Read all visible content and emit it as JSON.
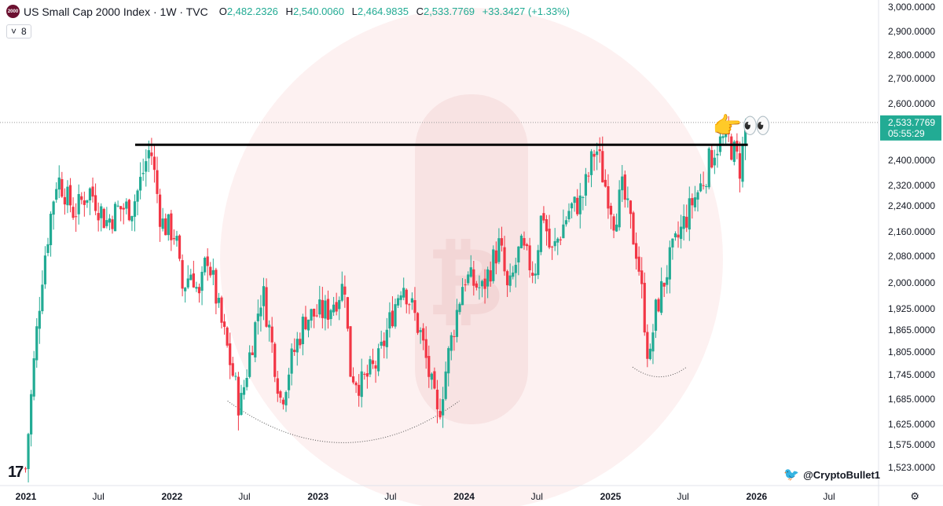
{
  "header": {
    "logo_text": "2000",
    "title": "US Small Cap 2000 Index · 1W · TVC",
    "open_label": "O",
    "open": "2,482.2326",
    "high_label": "H",
    "high": "2,540.0060",
    "low_label": "L",
    "low": "2,464.9835",
    "close_label": "C",
    "close": "2,533.7769",
    "change": "+33.3427 (+1.33%)"
  },
  "indicator_box": {
    "chevron": "˅",
    "count": "8"
  },
  "watermark": {
    "tv_logo": "17",
    "twitter_handle": "@CryptoBullet1"
  },
  "colors": {
    "up": "#22ab94",
    "down": "#f23645",
    "resistance": "#000000",
    "price_tag": "#22ab94"
  },
  "chart_data": {
    "type": "candlestick",
    "y_axis_ticks": [
      3000,
      2900,
      2800,
      2700,
      2600,
      2400,
      2320,
      2240,
      2160,
      2080,
      2000,
      1925,
      1865,
      1805,
      1745,
      1685,
      1625,
      1575,
      1523
    ],
    "y_axis_labels": [
      "3,000.0000",
      "2,900.0000",
      "2,800.0000",
      "2,700.0000",
      "2,600.0000",
      "2,400.0000",
      "2,320.0000",
      "2,240.0000",
      "2,160.0000",
      "2,080.0000",
      "2,000.0000",
      "1,925.0000",
      "1,865.0000",
      "1,805.0000",
      "1,745.0000",
      "1,685.0000",
      "1,625.0000",
      "1,575.0000",
      "1,523.0000"
    ],
    "x_axis_labels": [
      "2021",
      "Jul",
      "2022",
      "Jul",
      "2023",
      "Jul",
      "2024",
      "Jul",
      "2025",
      "Jul",
      "2026",
      "Jul"
    ],
    "x_axis_dates": [
      "2021-01-01",
      "2021-07-01",
      "2022-01-01",
      "2022-07-01",
      "2023-01-01",
      "2023-07-01",
      "2024-01-01",
      "2024-07-01",
      "2025-01-01",
      "2025-07-01",
      "2026-01-01",
      "2026-07-01"
    ],
    "last_price": 2533.7769,
    "last_price_label": "2,533.7769",
    "countdown": "05:55:29",
    "resistance_level": 2455,
    "resistance_start": "2021-10-01",
    "resistance_end": "2025-12-10",
    "anchors": [
      [
        "2020-12-31",
        1520
      ],
      [
        "2021-02-10",
        2020
      ],
      [
        "2021-03-20",
        2350
      ],
      [
        "2021-05-01",
        2220
      ],
      [
        "2021-06-10",
        2300
      ],
      [
        "2021-07-20",
        2190
      ],
      [
        "2021-08-20",
        2230
      ],
      [
        "2021-09-25",
        2240
      ],
      [
        "2021-11-08",
        2450
      ],
      [
        "2021-12-05",
        2190
      ],
      [
        "2022-01-10",
        2150
      ],
      [
        "2022-01-25",
        1980
      ],
      [
        "2022-02-20",
        2040
      ],
      [
        "2022-03-10",
        1950
      ],
      [
        "2022-03-30",
        2090
      ],
      [
        "2022-05-01",
        1900
      ],
      [
        "2022-06-20",
        1660
      ],
      [
        "2022-08-15",
        1980
      ],
      [
        "2022-09-30",
        1680
      ],
      [
        "2022-10-20",
        1760
      ],
      [
        "2022-11-30",
        1900
      ],
      [
        "2023-01-25",
        1920
      ],
      [
        "2023-03-10",
        2000
      ],
      [
        "2023-03-20",
        1760
      ],
      [
        "2023-04-20",
        1720
      ],
      [
        "2023-06-01",
        1780
      ],
      [
        "2023-07-31",
        2010
      ],
      [
        "2023-09-15",
        1850
      ],
      [
        "2023-10-27",
        1635
      ],
      [
        "2023-11-20",
        1780
      ],
      [
        "2024-01-01",
        2020
      ],
      [
        "2024-02-15",
        1980
      ],
      [
        "2024-03-30",
        2120
      ],
      [
        "2024-04-20",
        1960
      ],
      [
        "2024-05-20",
        2110
      ],
      [
        "2024-06-25",
        2030
      ],
      [
        "2024-07-15",
        2240
      ],
      [
        "2024-08-05",
        2080
      ],
      [
        "2024-09-20",
        2230
      ],
      [
        "2024-10-20",
        2260
      ],
      [
        "2024-11-25",
        2450
      ],
      [
        "2025-01-10",
        2200
      ],
      [
        "2025-01-30",
        2300
      ],
      [
        "2025-03-10",
        2080
      ],
      [
        "2025-04-08",
        1760
      ],
      [
        "2025-04-20",
        1900
      ],
      [
        "2025-06-01",
        2080
      ],
      [
        "2025-07-01",
        2180
      ],
      [
        "2025-08-15",
        2320
      ],
      [
        "2025-09-20",
        2450
      ],
      [
        "2025-10-20",
        2480
      ],
      [
        "2025-11-20",
        2380
      ],
      [
        "2025-12-08",
        2534
      ]
    ],
    "bottom_arcs": [
      {
        "from": "2022-05-20",
        "to": "2023-12-20",
        "level": 1580
      },
      {
        "from": "2025-02-25",
        "to": "2025-07-10",
        "level": 1740
      }
    ],
    "annotation_emoji": "👉👀"
  }
}
